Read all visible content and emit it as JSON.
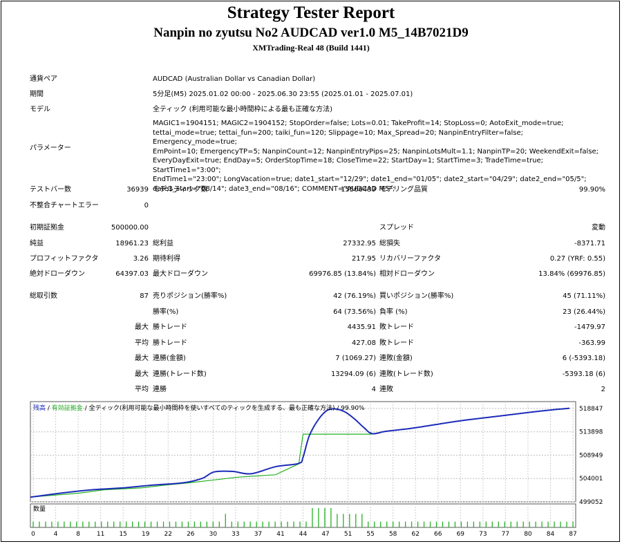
{
  "header": {
    "title": "Strategy Tester Report",
    "subtitle": "Nanpin no zyutsu No2 AUDCAD ver1.0 M5_14B7021D9",
    "server": "XMTrading-Real 48 (Build 1441)"
  },
  "info": {
    "symbol_label": "通貨ペア",
    "symbol": "AUDCAD (Australian Dollar vs Canadian Dollar)",
    "period_label": "期間",
    "period": "5分足(M5) 2025.01.02 00:00 - 2025.06.30 23:55 (2025.01.01 - 2025.07.01)",
    "model_label": "モデル",
    "model": "全ティック (利用可能な最小時間枠による最も正確な方法)",
    "params_label": "パラメーター",
    "params": "MAGIC1=1904151; MAGIC2=1904152; StopOrder=false; Lots=0.01; TakeProfit=14; StopLoss=0; AotoExit_mode=true;\ntettai_mode=true; tettai_fun=200; taiki_fun=120; Slippage=10; Max_Spread=20; NanpinEntryFilter=false; Emergency_mode=true;\nEmPoint=10; EmergencyTP=5; NanpinCount=12; NanpinEntryPips=25; NanpinLotsMult=1.1; NanpinTP=20; WeekendExit=false;\nEveryDayExit=true; EndDay=5; OrderStopTime=18; CloseTime=22; StartDay=1; StartTime=3; TradeTime=true; StartTime1=\"3:00\";\nEndTime1=\"23:00\"; LongVacation=true; date1_start=\"12/29\"; date1_end=\"01/05\"; date2_start=\"04/29\"; date2_end=\"05/5\";\ndate3_start=\"08/14\"; date3_end=\"08/16\"; COMMENT=\"AUDCAD M5\";"
  },
  "stats": {
    "bars_label": "テストバー数",
    "bars": "36939",
    "ticks_label": "モデルティック数",
    "ticks": "15566439",
    "quality_label": "モデリング品質",
    "quality": "99.90%",
    "mismatch_label": "不整合チャートエラー",
    "mismatch": "0",
    "deposit_label": "初期証拠金",
    "deposit": "500000.00",
    "spread_label": "スプレッド",
    "spread": "変動",
    "netprofit_label": "純益",
    "netprofit": "18961.23",
    "grossprofit_label": "総利益",
    "grossprofit": "27332.95",
    "grossloss_label": "総損失",
    "grossloss": "-8371.71",
    "pf_label": "プロフィットファクタ",
    "pf": "3.26",
    "expected_label": "期待利得",
    "expected": "217.95",
    "recovery_label": "リカバリーファクタ",
    "recovery": "0.27 (YRF: 0.55)",
    "absdd_label": "絶対ドローダウン",
    "absdd": "64397.03",
    "maxdd_label": "最大ドローダウン",
    "maxdd": "69976.85 (13.84%)",
    "reldd_label": "相対ドローダウン",
    "reldd": "13.84% (69976.85)",
    "trades_label": "総取引数",
    "trades": "87",
    "short_label": "売りポジション(勝率%)",
    "short": "42 (76.19%)",
    "long_label": "買いポジション(勝率%)",
    "long": "45 (71.11%)",
    "winrate_label": "勝率(%)",
    "winrate": "64 (73.56%)",
    "lossrate_label": "負率 (%)",
    "lossrate": "23 (26.44%)",
    "max_label": "最大",
    "avg_label": "平均",
    "largest_win_label": "勝トレード",
    "largest_win": "4435.91",
    "largest_loss_label": "敗トレード",
    "largest_loss": "-1479.97",
    "avg_win_label": "勝トレード",
    "avg_win": "427.08",
    "avg_loss_label": "敗トレード",
    "avg_loss": "-363.99",
    "consec_win_amt_label": "連勝(金額)",
    "consec_win_amt": "7 (1069.27)",
    "consec_loss_amt_label": "連敗(金額)",
    "consec_loss_amt": "6 (-5393.18)",
    "consec_win_cnt_label": "連勝(トレード数)",
    "consec_win_cnt": "13294.09 (6)",
    "consec_loss_cnt_label": "連敗(トレード数)",
    "consec_loss_cnt": "-5393.18 (6)",
    "avg_consec_win_label": "連勝",
    "avg_consec_win": "4",
    "avg_consec_loss_label": "連敗",
    "avg_consec_loss": "2"
  },
  "chart_data": {
    "type": "line",
    "legend": {
      "balance": "残高",
      "sep": " / ",
      "equity": "有効証拠金",
      "model": "全ティック(利用可能な最小時間枠を使いすべてのティックを生成する、最も正確な方法)",
      "quality": "99.90%"
    },
    "colors": {
      "balance": "#1c2bb8",
      "equity": "#22b022",
      "volume": "#22b022"
    },
    "y_ticks": [
      "518847",
      "513898",
      "508949",
      "504001",
      "499052"
    ],
    "ylim": [
      499052,
      520300
    ],
    "xlim": [
      0,
      89
    ],
    "x_ticks": [
      "0",
      "4",
      "8",
      "11",
      "15",
      "19",
      "22",
      "26",
      "30",
      "33",
      "37",
      "41",
      "44",
      "47",
      "51",
      "55",
      "58",
      "62",
      "66",
      "69",
      "73",
      "77",
      "80",
      "84",
      "87"
    ],
    "volume_label": "数量",
    "balance_series": [
      [
        0,
        500050
      ],
      [
        5,
        500900
      ],
      [
        10,
        501600
      ],
      [
        15,
        502000
      ],
      [
        20,
        502600
      ],
      [
        25,
        503100
      ],
      [
        28,
        504000
      ],
      [
        30,
        505400
      ],
      [
        33,
        505500
      ],
      [
        36,
        505000
      ],
      [
        40,
        506500
      ],
      [
        43.8,
        507200
      ],
      [
        44.5,
        508500
      ],
      [
        45.5,
        513000
      ],
      [
        47,
        516500
      ],
      [
        48.5,
        518500
      ],
      [
        50,
        518700
      ],
      [
        51.5,
        518000
      ],
      [
        53,
        516500
      ],
      [
        54.5,
        514700
      ],
      [
        55.8,
        513500
      ],
      [
        58,
        514000
      ],
      [
        62,
        514600
      ],
      [
        66,
        515400
      ],
      [
        70,
        516200
      ],
      [
        75,
        517000
      ],
      [
        80,
        517800
      ],
      [
        84,
        518400
      ],
      [
        88,
        518900
      ]
    ],
    "equity_series": [
      [
        0,
        500050
      ],
      [
        8,
        500900
      ],
      [
        12,
        501600
      ],
      [
        18,
        502000
      ],
      [
        22,
        502600
      ],
      [
        26,
        503100
      ],
      [
        30,
        503700
      ],
      [
        34,
        504300
      ],
      [
        40,
        504800
      ],
      [
        43.8,
        507100
      ],
      [
        44.5,
        513400
      ],
      [
        50,
        513400
      ],
      [
        54,
        513400
      ],
      [
        55.5,
        513400
      ],
      [
        57,
        513600
      ]
    ],
    "volume_bars": [
      0.3,
      0.3,
      0.3,
      0.3,
      0.3,
      0.3,
      0.3,
      0.3,
      0.3,
      0.3,
      0.3,
      0.3,
      0.3,
      0.3,
      0.3,
      0.3,
      0.3,
      0.3,
      0.3,
      0.3,
      0.3,
      0.3,
      0.3,
      0.3,
      0.3,
      0.3,
      0.3,
      0.3,
      0.3,
      0.3,
      0.3,
      0.7,
      0.3,
      0.3,
      0.3,
      0.3,
      0.3,
      0.3,
      0.3,
      0.3,
      0.3,
      0.3,
      0.3,
      0.3,
      0.3,
      1.0,
      1.0,
      1.0,
      1.0,
      0.7,
      0.7,
      0.7,
      0.7,
      0.7,
      0.3,
      0.3,
      0.3,
      0.3,
      0.3,
      0.3,
      0.3,
      0.3,
      0.3,
      0.3,
      0.3,
      0.3,
      0.3,
      0.3,
      0.3,
      0.3,
      0.3,
      0.3,
      0.3,
      0.3,
      0.3,
      0.3,
      0.3,
      0.3,
      0.3,
      0.3,
      0.3,
      0.3,
      0.3,
      0.3,
      0.3,
      0.3,
      0.3,
      0.3
    ]
  }
}
